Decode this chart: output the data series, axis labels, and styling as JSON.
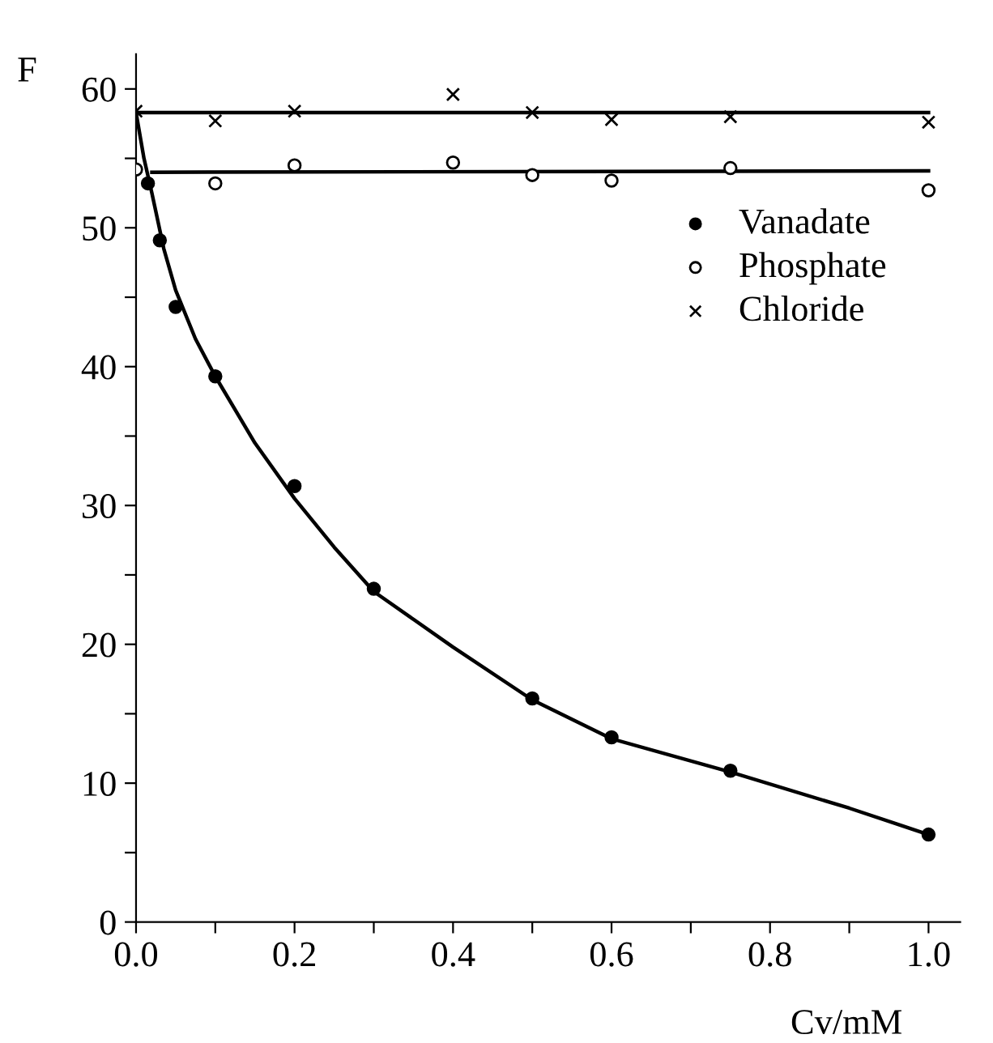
{
  "chart_data": {
    "type": "scatter",
    "xlabel": "Cv/mM",
    "ylabel": "F",
    "xlim": [
      0,
      1.04
    ],
    "ylim": [
      0,
      62.5
    ],
    "xticks": [
      {
        "value": 0,
        "label": "0.0"
      },
      {
        "value": 0.1,
        "label": null
      },
      {
        "value": 0.2,
        "label": "0.2"
      },
      {
        "value": 0.3,
        "label": null
      },
      {
        "value": 0.4,
        "label": "0.4"
      },
      {
        "value": 0.5,
        "label": null
      },
      {
        "value": 0.6,
        "label": "0.6"
      },
      {
        "value": 0.7,
        "label": null
      },
      {
        "value": 0.8,
        "label": "0.8"
      },
      {
        "value": 0.9,
        "label": null
      },
      {
        "value": 1.0,
        "label": "1.0"
      }
    ],
    "yticks": [
      0,
      {
        "value": 5,
        "label": null
      },
      10,
      {
        "value": 15,
        "label": null
      },
      20,
      {
        "value": 25,
        "label": null
      },
      30,
      {
        "value": 35,
        "label": null
      },
      40,
      {
        "value": 45,
        "label": null
      },
      50,
      {
        "value": 55,
        "label": null
      },
      60
    ],
    "grid": false,
    "legend": "top right",
    "series": [
      {
        "name": "Vanadate",
        "color": "#000000",
        "marker": "filled circle",
        "x": [
          0.015,
          0.03,
          0.05,
          0.1,
          0.2,
          0.3,
          0.5,
          0.6,
          0.75,
          1.0
        ],
        "values": [
          53.2,
          49.1,
          44.3,
          39.3,
          31.4,
          24.0,
          16.1,
          13.3,
          10.9,
          6.3
        ]
      },
      {
        "name": "Phosphate",
        "color": "#000000",
        "marker": "open circle",
        "x": [
          0.0,
          0.1,
          0.2,
          0.4,
          0.5,
          0.6,
          0.75,
          1.0
        ],
        "values": [
          54.2,
          53.2,
          54.5,
          54.7,
          53.8,
          53.4,
          54.3,
          52.7
        ]
      },
      {
        "name": "Chloride",
        "color": "#000000",
        "marker": "cross",
        "x": [
          0.0,
          0.1,
          0.2,
          0.4,
          0.5,
          0.6,
          0.75,
          1.0
        ],
        "values": [
          58.4,
          57.7,
          58.4,
          59.6,
          58.3,
          57.8,
          58.0,
          57.6
        ]
      },
      {
        "type": "line",
        "color": "#000000",
        "x": [
          0.0,
          0.01,
          0.02,
          0.035,
          0.05,
          0.075,
          0.1,
          0.15,
          0.2,
          0.25,
          0.3,
          0.4,
          0.5,
          0.6,
          0.75,
          0.9,
          1.0
        ],
        "values": [
          58.3,
          55.0,
          52.5,
          48.5,
          45.5,
          42.0,
          39.3,
          34.5,
          30.5,
          27.0,
          23.8,
          19.8,
          16.0,
          13.2,
          10.8,
          8.2,
          6.3
        ]
      },
      {
        "type": "line",
        "color": "#000000",
        "x": [
          0.02,
          1.0
        ],
        "values": [
          54.0,
          54.1
        ]
      },
      {
        "type": "line",
        "color": "#000000",
        "x": [
          0.0,
          1.0
        ],
        "values": [
          58.3,
          58.3
        ]
      }
    ]
  }
}
